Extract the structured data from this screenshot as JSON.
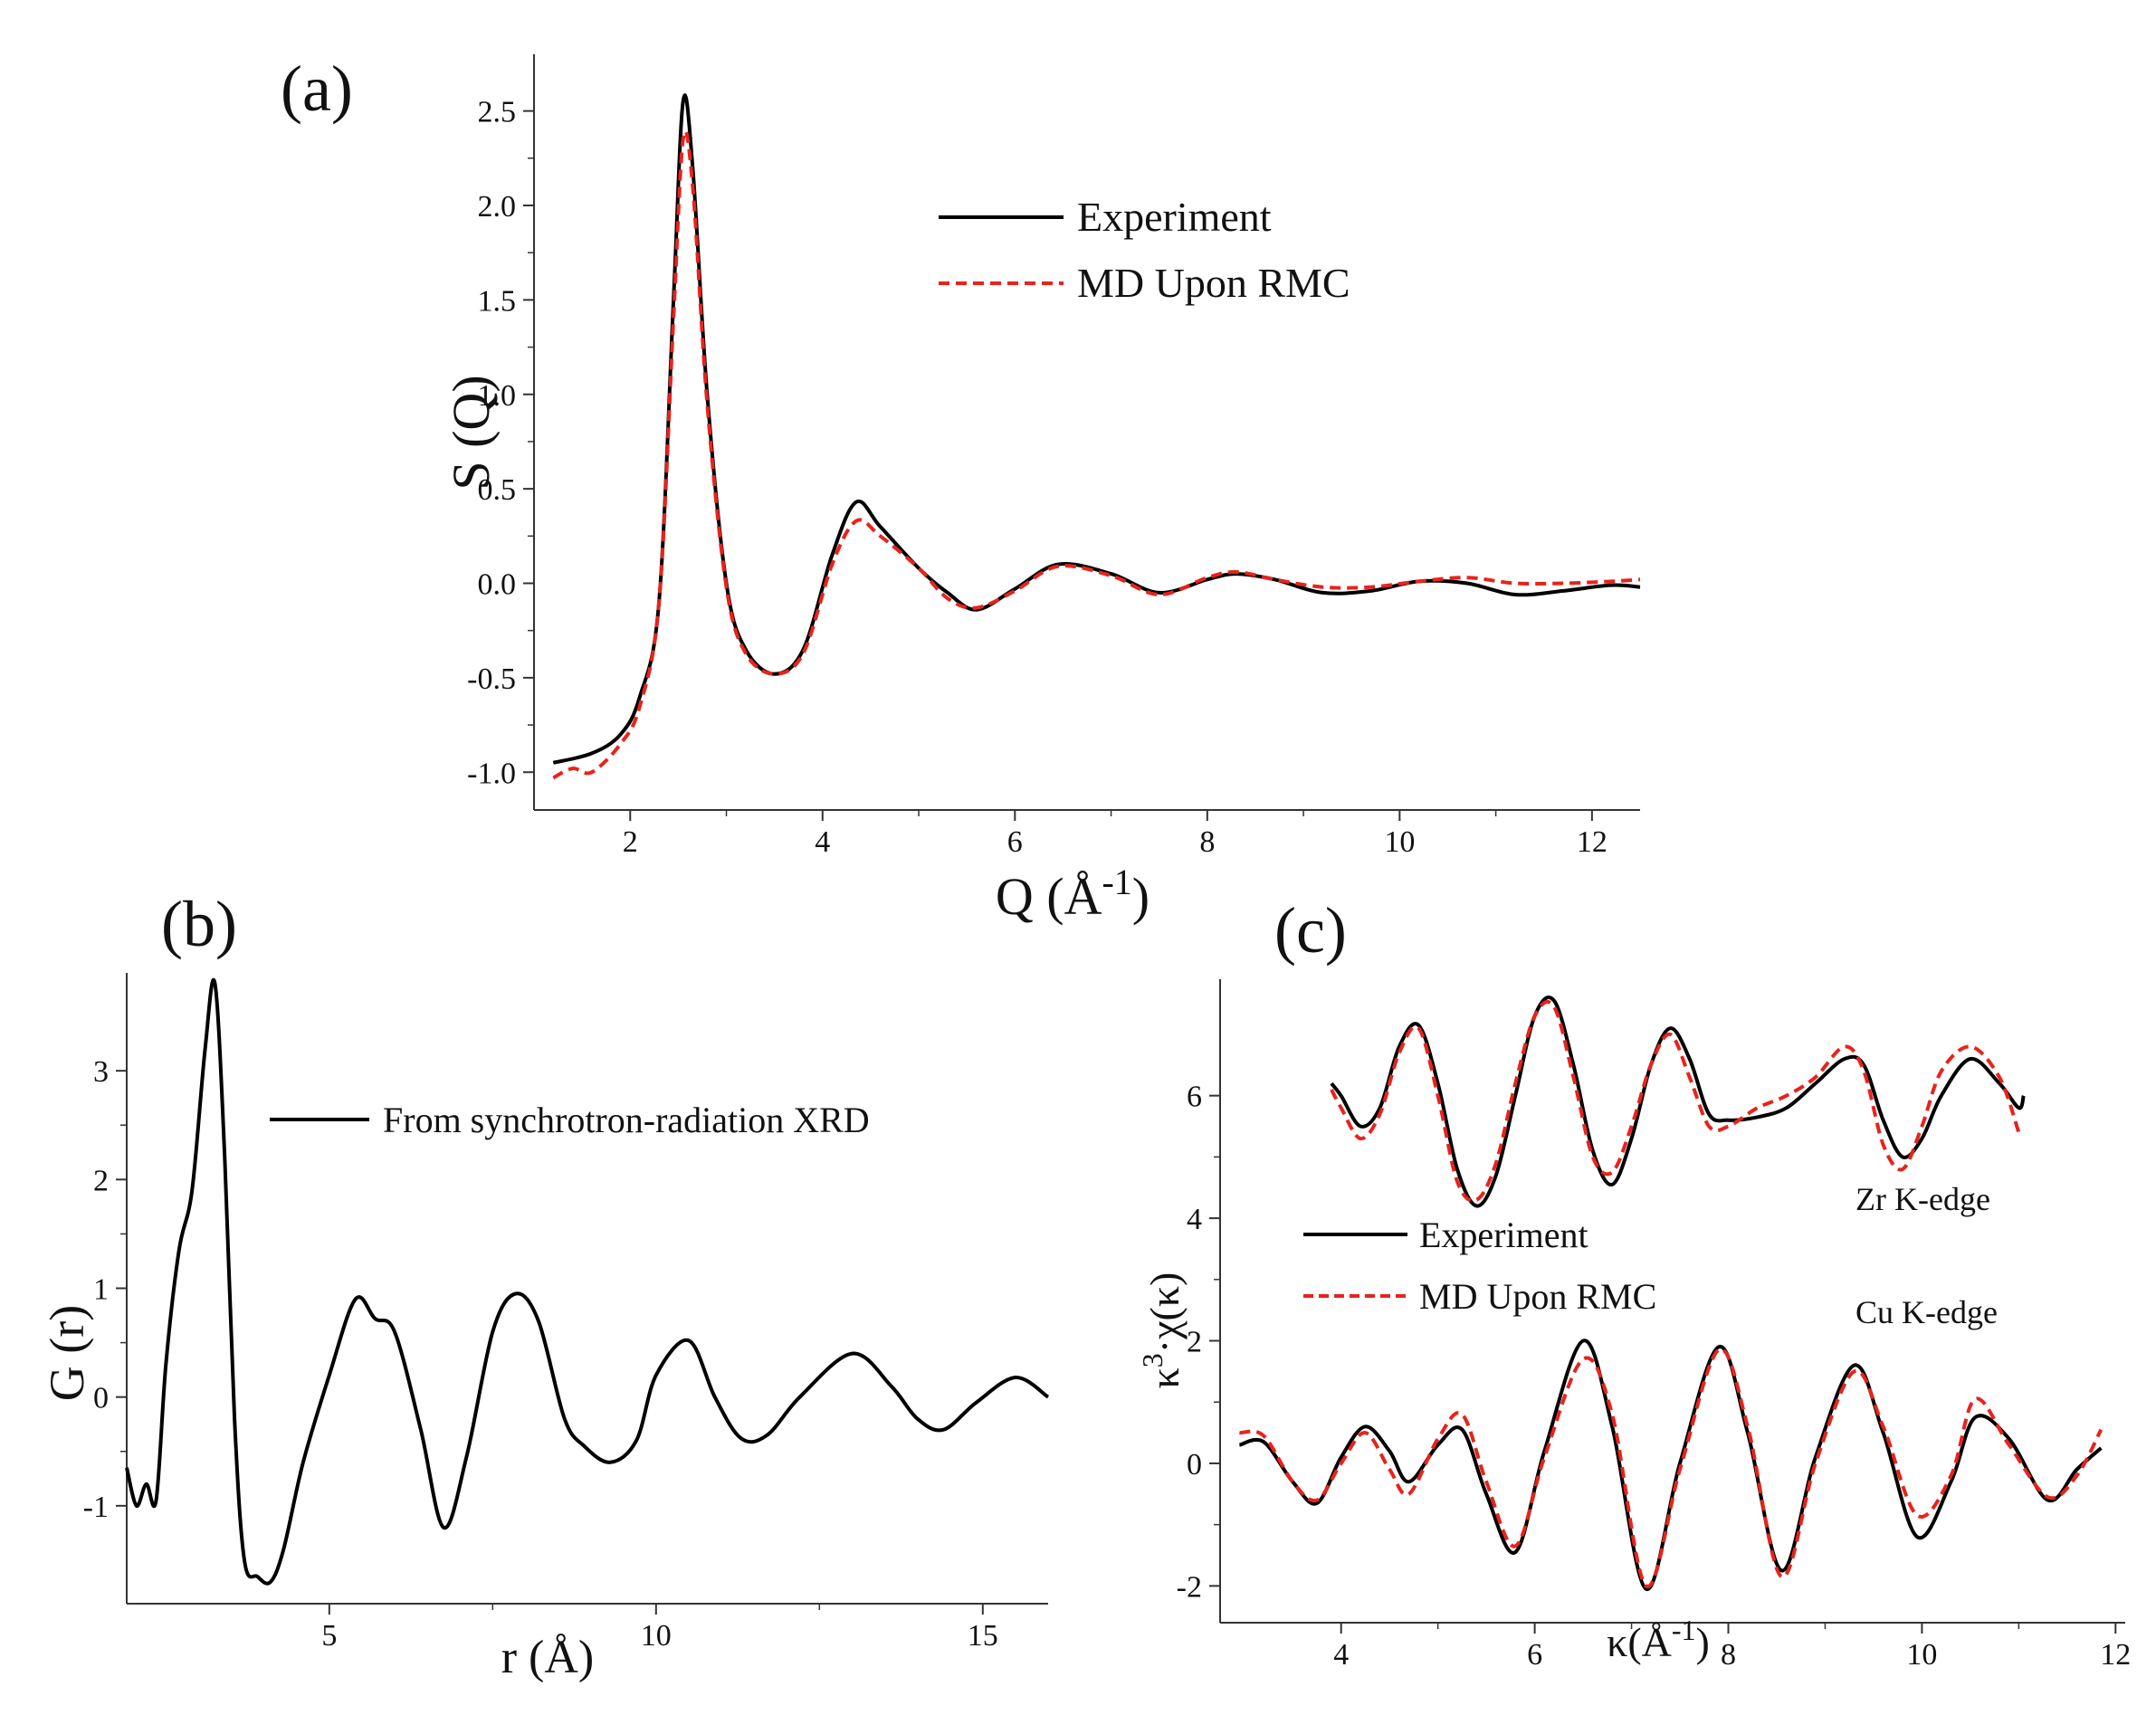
{
  "chart_data": [
    {
      "panel": "(a)",
      "type": "line",
      "xlabel": "Q (Å",
      "xlabel_sup": "-1",
      "xlabel_close": ")",
      "ylabel": "S (Q)",
      "xlim": [
        1.0,
        12.5
      ],
      "ylim": [
        -1.2,
        2.8
      ],
      "xticks": [
        2,
        4,
        6,
        8,
        10,
        12
      ],
      "yticks": [
        -1.0,
        -0.5,
        0.0,
        0.5,
        1.0,
        1.5,
        2.0,
        2.5
      ],
      "ytick_labels": [
        "-1.0",
        "-0.5",
        "0.0",
        "0.5",
        "1.0",
        "1.5",
        "2.0",
        "2.5"
      ],
      "legend": [
        "Experiment",
        "MD Upon RMC"
      ],
      "legend_placement": "upper-middle",
      "series": [
        {
          "name": "Experiment",
          "color": "#000000",
          "style": "solid",
          "x": [
            1.2,
            1.6,
            1.9,
            2.1,
            2.3,
            2.45,
            2.55,
            2.65,
            2.8,
            3.0,
            3.2,
            3.5,
            3.8,
            4.1,
            4.35,
            4.6,
            5.0,
            5.3,
            5.6,
            6.0,
            6.45,
            7.0,
            7.5,
            8.0,
            8.3,
            8.7,
            9.2,
            9.7,
            10.2,
            10.7,
            11.2,
            11.7,
            12.2,
            12.5
          ],
          "y": [
            -0.95,
            -0.9,
            -0.8,
            -0.6,
            -0.1,
            1.5,
            2.55,
            2.2,
            1.0,
            0.0,
            -0.35,
            -0.48,
            -0.35,
            0.15,
            0.43,
            0.3,
            0.08,
            -0.05,
            -0.14,
            -0.03,
            0.1,
            0.05,
            -0.05,
            0.02,
            0.05,
            0.02,
            -0.05,
            -0.04,
            0.01,
            0.0,
            -0.06,
            -0.04,
            -0.01,
            -0.02
          ]
        },
        {
          "name": "MD Upon RMC",
          "color": "#e8231c",
          "style": "dashed",
          "x": [
            1.2,
            1.4,
            1.6,
            1.9,
            2.1,
            2.3,
            2.45,
            2.55,
            2.65,
            2.8,
            3.0,
            3.2,
            3.5,
            3.8,
            4.1,
            4.35,
            4.6,
            5.0,
            5.3,
            5.6,
            6.0,
            6.45,
            7.0,
            7.5,
            8.0,
            8.3,
            8.7,
            9.2,
            9.7,
            10.2,
            10.7,
            11.2,
            11.7,
            12.2,
            12.5
          ],
          "y": [
            -1.03,
            -0.98,
            -1.0,
            -0.85,
            -0.65,
            -0.1,
            1.4,
            2.35,
            2.1,
            0.95,
            -0.02,
            -0.37,
            -0.48,
            -0.37,
            0.1,
            0.33,
            0.25,
            0.08,
            -0.08,
            -0.13,
            -0.04,
            0.09,
            0.04,
            -0.06,
            0.03,
            0.06,
            0.02,
            -0.02,
            -0.02,
            0.01,
            0.03,
            0.0,
            0.0,
            0.01,
            0.02
          ]
        }
      ]
    },
    {
      "panel": "(b)",
      "type": "line",
      "xlabel": "r (Å)",
      "ylabel": "G (r)",
      "xlim": [
        1.9,
        16.0
      ],
      "ylim": [
        -1.9,
        3.9
      ],
      "xticks": [
        5,
        10,
        15
      ],
      "yticks": [
        -1,
        0,
        1,
        2,
        3
      ],
      "legend": [
        "From synchrotron-radiation XRD"
      ],
      "legend_placement": "upper-middle",
      "series": [
        {
          "name": "From synchrotron-radiation XRD",
          "color": "#000000",
          "style": "solid",
          "x": [
            1.9,
            2.05,
            2.2,
            2.35,
            2.5,
            2.7,
            2.9,
            3.1,
            3.25,
            3.4,
            3.55,
            3.7,
            3.9,
            4.1,
            4.3,
            4.6,
            5.0,
            5.4,
            5.7,
            6.0,
            6.4,
            6.75,
            7.1,
            7.5,
            7.85,
            8.2,
            8.6,
            8.9,
            9.3,
            9.7,
            10.0,
            10.5,
            10.9,
            11.3,
            11.7,
            12.2,
            13.0,
            13.6,
            14.0,
            14.4,
            14.9,
            15.5,
            16.0
          ],
          "y": [
            -0.65,
            -1.0,
            -0.8,
            -0.95,
            0.3,
            1.35,
            1.9,
            3.2,
            3.8,
            2.2,
            -0.2,
            -1.5,
            -1.65,
            -1.7,
            -1.4,
            -0.6,
            0.2,
            0.9,
            0.72,
            0.6,
            -0.3,
            -1.2,
            -0.55,
            0.6,
            0.95,
            0.7,
            -0.2,
            -0.45,
            -0.6,
            -0.4,
            0.2,
            0.52,
            0.0,
            -0.38,
            -0.35,
            0.0,
            0.4,
            0.1,
            -0.2,
            -0.3,
            -0.05,
            0.18,
            0.0
          ]
        }
      ]
    },
    {
      "panel": "(c)",
      "type": "line",
      "xlabel": "κ(Å",
      "xlabel_sup": "-1",
      "xlabel_close": ")",
      "ylabel": "κ",
      "ylabel_sup": "3",
      "ylabel_rest": "·χ(κ)",
      "xlim": [
        2.75,
        12.1
      ],
      "ylim": [
        -2.6,
        7.9
      ],
      "xticks": [
        4,
        6,
        8,
        10,
        12
      ],
      "yticks": [
        -2,
        0,
        2,
        4,
        6
      ],
      "legend": [
        "Experiment",
        "MD Upon RMC"
      ],
      "legend_placement": "middle-left",
      "annotations": [
        "Zr K-edge",
        "Cu K-edge"
      ],
      "series": [
        {
          "name": "Experiment (Zr K-edge)",
          "color": "#000000",
          "style": "solid",
          "x": [
            3.9,
            4.0,
            4.2,
            4.4,
            4.6,
            4.8,
            5.0,
            5.2,
            5.4,
            5.6,
            5.8,
            6.0,
            6.2,
            6.4,
            6.6,
            6.8,
            7.0,
            7.2,
            7.4,
            7.6,
            7.8,
            8.0,
            8.3,
            8.6,
            8.9,
            9.2,
            9.4,
            9.6,
            9.8,
            10.0,
            10.2,
            10.5,
            10.8,
            11.0,
            11.05
          ],
          "y": [
            6.2,
            6.0,
            5.5,
            5.8,
            6.8,
            7.15,
            6.2,
            4.8,
            4.2,
            4.7,
            6.0,
            7.3,
            7.55,
            6.5,
            5.1,
            4.55,
            5.3,
            6.5,
            7.1,
            6.6,
            5.7,
            5.6,
            5.65,
            5.8,
            6.2,
            6.6,
            6.5,
            5.6,
            5.0,
            5.3,
            6.0,
            6.6,
            6.2,
            5.8,
            6.0
          ]
        },
        {
          "name": "MD Upon RMC (Zr K-edge)",
          "color": "#e8231c",
          "style": "dashed",
          "x": [
            3.9,
            4.0,
            4.2,
            4.4,
            4.6,
            4.8,
            5.0,
            5.2,
            5.4,
            5.6,
            5.8,
            6.0,
            6.2,
            6.4,
            6.6,
            6.8,
            7.0,
            7.2,
            7.4,
            7.6,
            7.8,
            8.0,
            8.3,
            8.6,
            8.9,
            9.2,
            9.4,
            9.6,
            9.8,
            10.0,
            10.2,
            10.5,
            10.8,
            11.0
          ],
          "y": [
            6.1,
            5.8,
            5.3,
            5.7,
            6.7,
            7.1,
            6.0,
            4.6,
            4.3,
            4.9,
            6.2,
            7.3,
            7.45,
            6.3,
            5.0,
            4.75,
            5.5,
            6.5,
            7.0,
            6.3,
            5.5,
            5.5,
            5.8,
            6.0,
            6.3,
            6.8,
            6.4,
            5.2,
            4.8,
            5.5,
            6.4,
            6.8,
            6.3,
            5.4
          ]
        },
        {
          "name": "Experiment (Cu K-edge)",
          "color": "#000000",
          "style": "solid",
          "x": [
            2.95,
            3.2,
            3.5,
            3.75,
            4.0,
            4.25,
            4.5,
            4.7,
            5.0,
            5.25,
            5.5,
            5.8,
            6.1,
            6.5,
            6.8,
            7.15,
            7.5,
            7.9,
            8.2,
            8.55,
            8.9,
            9.3,
            9.6,
            9.95,
            10.3,
            10.55,
            10.9,
            11.3,
            11.6,
            11.85
          ],
          "y": [
            0.3,
            0.35,
            -0.3,
            -0.65,
            0.1,
            0.6,
            0.2,
            -0.3,
            0.3,
            0.55,
            -0.5,
            -1.45,
            0.2,
            2.0,
            0.6,
            -2.05,
            0.0,
            1.9,
            0.5,
            -1.75,
            0.1,
            1.6,
            0.5,
            -1.2,
            -0.3,
            0.75,
            0.4,
            -0.6,
            -0.1,
            0.25
          ]
        },
        {
          "name": "MD Upon RMC (Cu K-edge)",
          "color": "#e8231c",
          "style": "dashed",
          "x": [
            2.95,
            3.2,
            3.5,
            3.75,
            4.0,
            4.25,
            4.5,
            4.7,
            5.0,
            5.25,
            5.5,
            5.8,
            6.1,
            6.5,
            6.8,
            7.15,
            7.5,
            7.9,
            8.2,
            8.55,
            8.9,
            9.3,
            9.6,
            9.95,
            10.3,
            10.55,
            10.9,
            11.3,
            11.6,
            11.85
          ],
          "y": [
            0.5,
            0.45,
            -0.3,
            -0.6,
            0.0,
            0.5,
            -0.1,
            -0.5,
            0.4,
            0.8,
            -0.3,
            -1.35,
            0.1,
            1.7,
            0.8,
            -2.0,
            -0.1,
            1.85,
            0.6,
            -1.85,
            0.0,
            1.5,
            0.6,
            -0.85,
            -0.2,
            1.05,
            0.3,
            -0.55,
            -0.2,
            0.55
          ]
        }
      ]
    }
  ]
}
